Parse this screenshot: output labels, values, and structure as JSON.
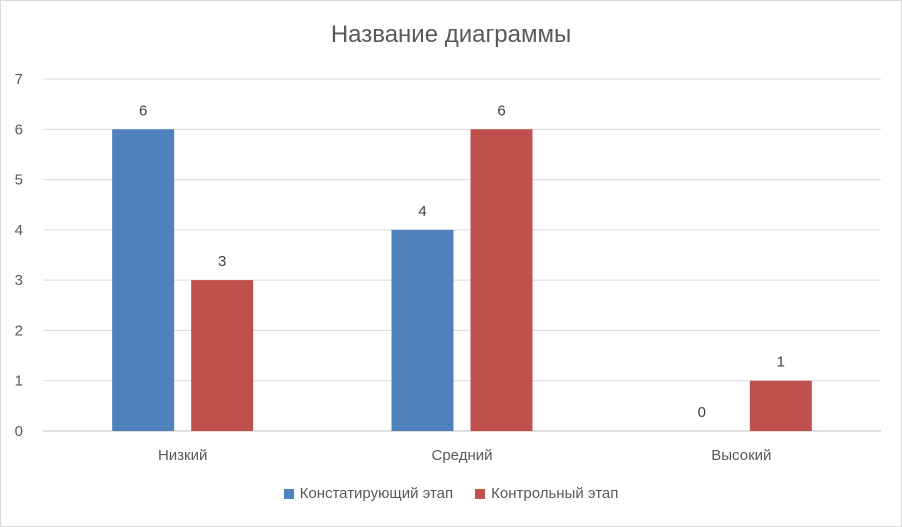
{
  "chart_data": {
    "type": "bar",
    "title": "Название диаграммы",
    "categories": [
      "Низкий",
      "Средний",
      "Высокий"
    ],
    "series": [
      {
        "name": "Констатирующий этап",
        "values": [
          6,
          4,
          0
        ],
        "color": "#4f81bd"
      },
      {
        "name": "Контрольный этап",
        "values": [
          3,
          6,
          1
        ],
        "color": "#c0504d"
      }
    ],
    "ylim": [
      0,
      7
    ],
    "yticks": [
      "0",
      "1",
      "2",
      "3",
      "4",
      "5",
      "6",
      "7"
    ],
    "grid": true,
    "data_labels": true,
    "legend_position": "bottom"
  }
}
